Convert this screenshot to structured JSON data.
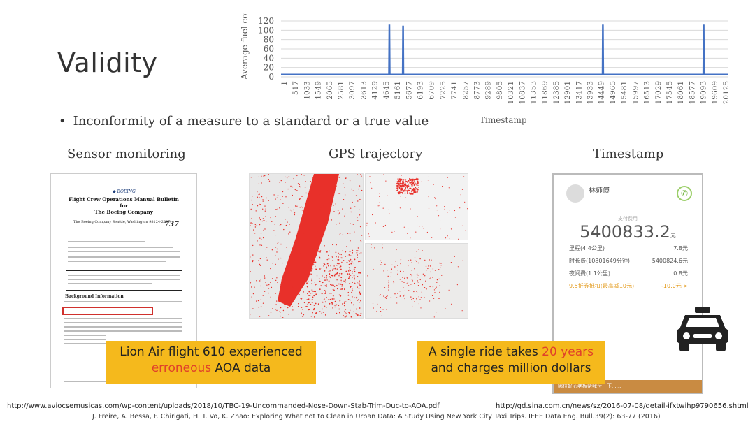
{
  "slide": {
    "title": "Validity",
    "bullet": "Inconformity of a measure to a standard or a true value",
    "sections": [
      "Sensor monitoring",
      "GPS trajectory",
      "Timestamp"
    ]
  },
  "chart_data": {
    "type": "line",
    "ylabel": "Average fuel consumption",
    "xlabel": "Timestamp",
    "ylim": [
      0,
      120
    ],
    "yticks": [
      0,
      20,
      40,
      60,
      80,
      100,
      120
    ],
    "xtick_labels": [
      "1",
      "517",
      "1033",
      "1549",
      "2065",
      "2581",
      "3097",
      "3613",
      "4129",
      "4645",
      "5161",
      "5677",
      "6193",
      "6709",
      "7225",
      "7741",
      "8257",
      "8773",
      "9289",
      "9805",
      "10321",
      "10837",
      "11353",
      "11869",
      "12385",
      "12901",
      "13417",
      "13933",
      "14449",
      "14965",
      "15481",
      "15997",
      "16513",
      "17029",
      "17545",
      "18061",
      "18577",
      "19093",
      "19609",
      "20125"
    ],
    "xlim": [
      1,
      20600
    ],
    "grid": true,
    "series": [
      {
        "color": "#4472c4",
        "baseline": 5,
        "spikes": [
          {
            "x": 4990,
            "y": 112
          },
          {
            "x": 5620,
            "y": 110
          },
          {
            "x": 14820,
            "y": 112
          },
          {
            "x": 19460,
            "y": 112
          }
        ]
      }
    ]
  },
  "document": {
    "title_lines": [
      "Flight Crew Operations Manual Bulletin",
      "for",
      "The Boeing Company"
    ],
    "box_text": "The Boeing Company Seattle, Washington 98124-2207",
    "logo_text": "737",
    "section_heading": "Background Information"
  },
  "phone": {
    "name": "林师傅",
    "fee_label": "支付费用",
    "amount": "5400833.2",
    "amount_unit": "元",
    "rows": [
      {
        "label": "里程(4.4公里)",
        "value": "7.8元"
      },
      {
        "label": "时长费(10801649分钟)",
        "value": "5400824.6元"
      },
      {
        "label": "夜间费(1.1公里)",
        "value": "0.8元"
      },
      {
        "label": "9.5折券抵扣(最高减10元)",
        "value": "-10.0元 >"
      }
    ],
    "bottom_text": "哪位好心老板帮我付一下......"
  },
  "callouts": {
    "left": {
      "line1": "Lion Air flight 610 experienced",
      "line2_highlight": "erroneous",
      "line2_rest": " AOA data"
    },
    "right": {
      "line1_prefix": "A single ride takes ",
      "line1_highlight": "20 years",
      "line2": "and charges million dollars"
    }
  },
  "footer": {
    "url_left": "http://www.aviocsemusicas.com/wp-content/uploads/2018/10/TBC-19-Uncommanded-Nose-Down-Stab-Trim-Duc-to-AOA.pdf",
    "url_right": "http://gd.sina.com.cn/news/sz/2016-07-08/detail-ifxtwihp9790656.shtml",
    "citation": "J. Freire, A. Bessa, F. Chirigati, H. T. Vo, K. Zhao: Exploring What not to Clean in Urban Data: A Study Using New York City Taxi Trips. IEEE Data Eng. Bull.39(2): 63-77 (2016)"
  },
  "colors": {
    "callout": "#f5b91c",
    "highlight_red": "#e0402a",
    "gps_red": "#e8302a",
    "series": "#4472c4"
  }
}
